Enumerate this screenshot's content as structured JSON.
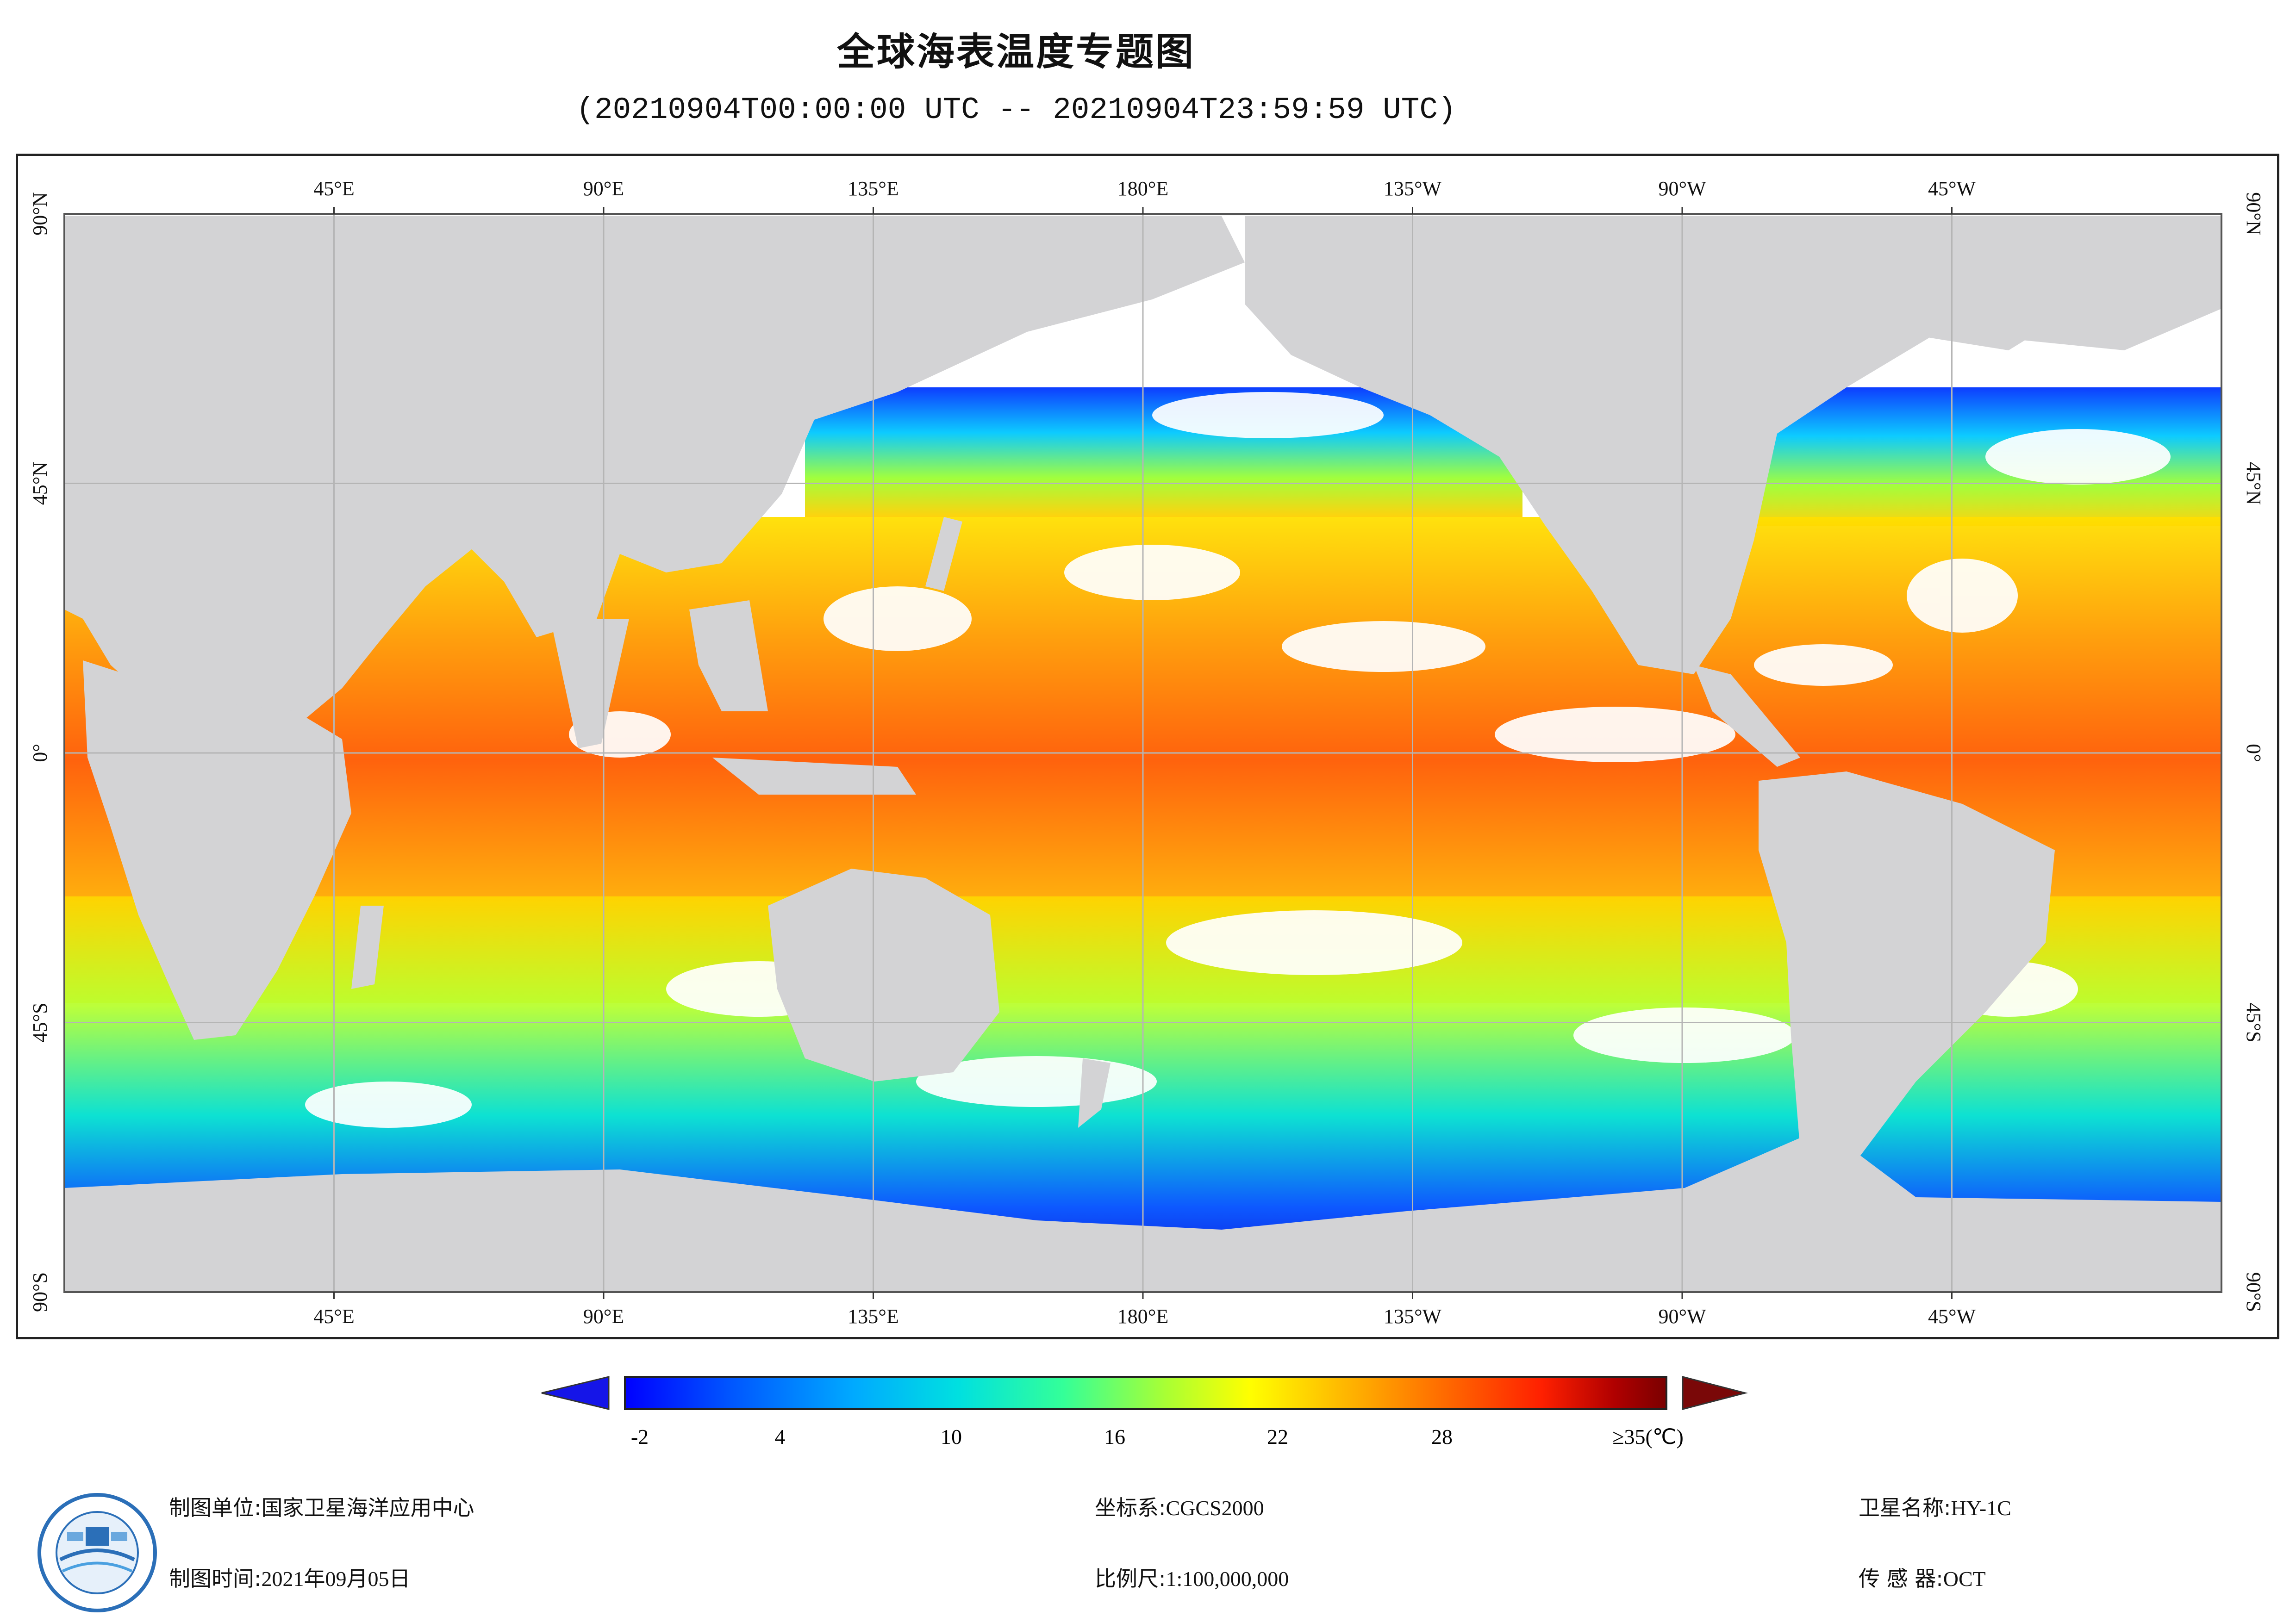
{
  "title": "全球海表温度专题图",
  "subtitle": "(20210904T00:00:00 UTC -- 20210904T23:59:59 UTC)",
  "map": {
    "longitude_ticks_top": [
      "45°E",
      "90°E",
      "135°E",
      "180°E",
      "135°W",
      "90°W",
      "45°W"
    ],
    "longitude_ticks_bottom": [
      "45°E",
      "90°E",
      "135°E",
      "180°E",
      "135°W",
      "90°W",
      "45°W"
    ],
    "latitude_ticks_left": [
      "90°N",
      "45°N",
      "0°",
      "45°S",
      "90°S"
    ],
    "latitude_ticks_right": [
      "90°N",
      "45°N",
      "0°",
      "45°S",
      "90°S"
    ],
    "colors": {
      "land": "#d3d3d5",
      "no_data": "#ffffff",
      "grid": "#b5b5b5",
      "frame": "#222222"
    }
  },
  "colorbar": {
    "tick_labels": [
      "-2",
      "4",
      "10",
      "16",
      "22",
      "28",
      "≥35(℃)"
    ],
    "range": [
      -2,
      35
    ],
    "unit": "℃",
    "under_color": "#1515e8",
    "over_color": "#7a0808",
    "stops": [
      "#0000ff",
      "#0055ff",
      "#00aaff",
      "#00e0e0",
      "#33ff99",
      "#aaff33",
      "#ffff00",
      "#ffb000",
      "#ff6000",
      "#ff2000",
      "#b00000",
      "#7a0000"
    ]
  },
  "footer": {
    "unit_label": "制图单位:",
    "unit_value": "国家卫星海洋应用中心",
    "time_label": "制图时间:",
    "time_value": "2021年09月05日",
    "crs_label": "坐标系:",
    "crs_value": "CGCS2000",
    "scale_label": "比例尺:",
    "scale_value": "1:100,000,000",
    "satellite_label": "卫星名称:",
    "satellite_value": "HY-1C",
    "sensor_label": "传 感 器:",
    "sensor_value": "OCT"
  }
}
